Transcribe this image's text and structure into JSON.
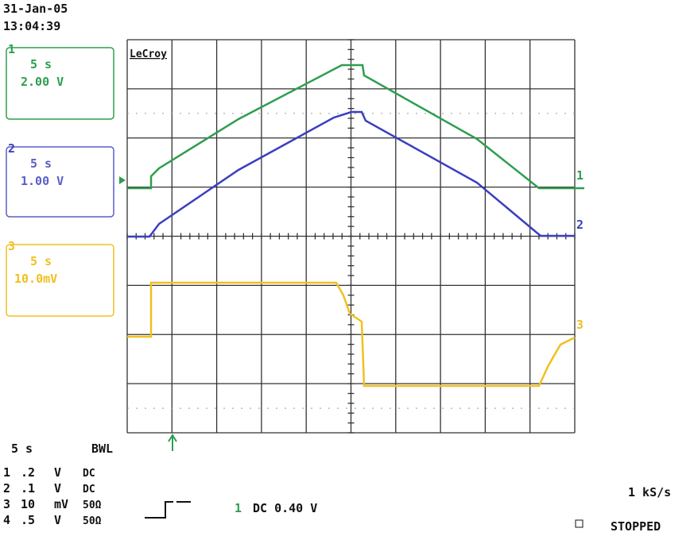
{
  "header": {
    "date": "31-Jan-05",
    "time": "13:04:39"
  },
  "channels": [
    {
      "number": "1",
      "timebase": "5 s",
      "scale": "2.00 V"
    },
    {
      "number": "2",
      "timebase": "5 s",
      "scale": "1.00 V"
    },
    {
      "number": "3",
      "timebase": "5 s",
      "scale": "10.0mV"
    }
  ],
  "brand": "LeCroy",
  "trace_labels": [
    "1",
    "2",
    "3"
  ],
  "footer": {
    "timebase": "5 s",
    "bandwidth": "BWL",
    "rows": [
      {
        "channel": "1",
        "scale": ".2",
        "unit": "V",
        "coupling": "DC"
      },
      {
        "channel": "2",
        "scale": ".1",
        "unit": "V",
        "coupling": "DC"
      },
      {
        "channel": "3",
        "scale": "10",
        "unit": "mV",
        "coupling": "50Ω"
      },
      {
        "channel": "4",
        "scale": ".5",
        "unit": "V",
        "coupling": "50Ω"
      }
    ],
    "trigger_channel": "1",
    "trigger_setting": "DC 0.40 V",
    "sample_rate": "1 kS/s",
    "status": "STOPPED"
  }
}
